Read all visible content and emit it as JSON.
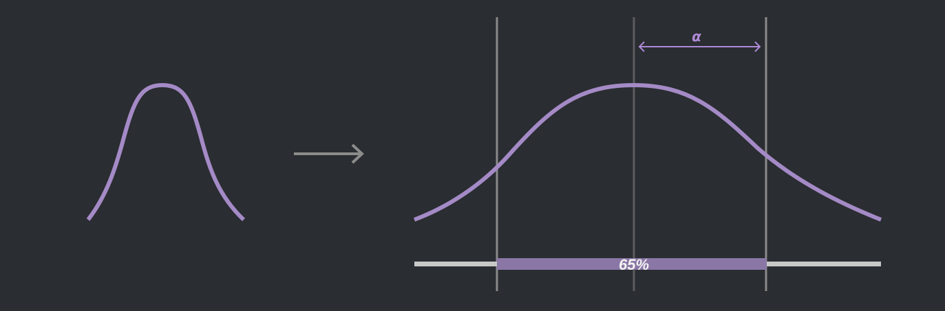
{
  "colors": {
    "background": "#2a2d31",
    "curve": "#a48ac6",
    "arrow": "#8c8c8c",
    "guide_line": "#8a8a8a",
    "center_line": "#5a5c60",
    "axis_bar": "#c8c8c8",
    "highlight_bar": "#8a77a6",
    "alpha_color": "#b08ad8",
    "percent_text": "#f2f2f2"
  },
  "labels": {
    "alpha": "α",
    "percent": "65%"
  },
  "icons": {
    "transform_arrow": "right-arrow-icon",
    "alpha_arrow": "double-headed-arrow-icon"
  }
}
